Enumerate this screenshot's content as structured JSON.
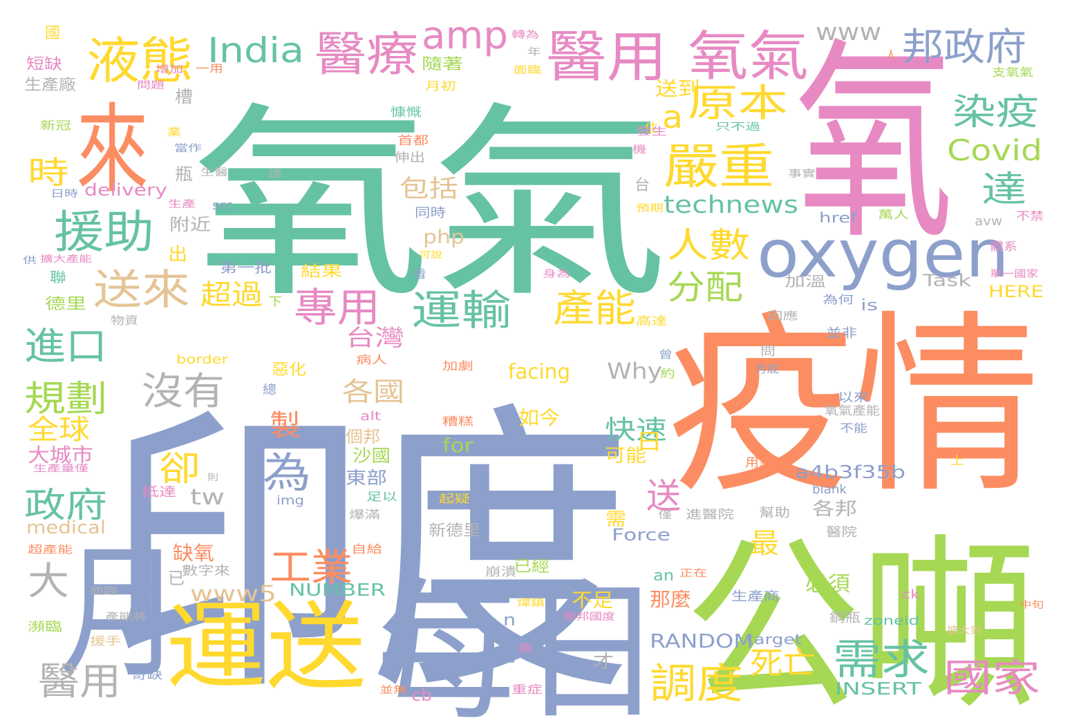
{
  "cloud": {
    "palette": {
      "green": "#66c2a5",
      "orange": "#fc8d62",
      "blue": "#8da0cb",
      "pink": "#e78ac3",
      "lime": "#a6d854",
      "yellow": "#ffd92f",
      "tan": "#e5c494",
      "gray": "#b3b3b3"
    },
    "words": [
      {
        "text": "氧氣",
        "color": "#66c2a5"
      },
      {
        "text": "印度",
        "color": "#8da0cb"
      },
      {
        "text": "氧",
        "color": "#e78ac3"
      },
      {
        "text": "疫情",
        "color": "#fc8d62"
      },
      {
        "text": "公噸",
        "color": "#a6d854"
      },
      {
        "text": "每日",
        "color": "#8da0cb"
      },
      {
        "text": "運送",
        "color": "#ffd92f"
      },
      {
        "text": "月",
        "color": "#8da0cb"
      },
      {
        "text": "來",
        "color": "#fc8d62"
      },
      {
        "text": "oxygen",
        "color": "#8da0cb"
      },
      {
        "text": "醫用",
        "color": "#e78ac3"
      },
      {
        "text": "氧氣",
        "color": "#e78ac3"
      },
      {
        "text": "液態",
        "color": "#ffd92f"
      },
      {
        "text": "醫療",
        "color": "#e78ac3"
      },
      {
        "text": "amp",
        "color": "#e78ac3"
      },
      {
        "text": "India",
        "color": "#66c2a5"
      },
      {
        "text": "邦政府",
        "color": "#8da0cb"
      },
      {
        "text": "www",
        "color": "#b3b3b3"
      },
      {
        "text": "援助",
        "color": "#66c2a5"
      },
      {
        "text": "送來",
        "color": "#e5c494"
      },
      {
        "text": "嚴重",
        "color": "#ffd92f"
      },
      {
        "text": "原本",
        "color": "#ffd92f"
      },
      {
        "text": "染疫",
        "color": "#66c2a5"
      },
      {
        "text": "Covid",
        "color": "#a6d854"
      },
      {
        "text": "達",
        "color": "#66c2a5"
      },
      {
        "text": "a",
        "color": "#ffd92f"
      },
      {
        "text": "人數",
        "color": "#ffd92f"
      },
      {
        "text": "分配",
        "color": "#a6d854"
      },
      {
        "text": "technews",
        "color": "#66c2a5"
      },
      {
        "text": "運輸",
        "color": "#66c2a5"
      },
      {
        "text": "產能",
        "color": "#ffd92f"
      },
      {
        "text": "專用",
        "color": "#e78ac3"
      },
      {
        "text": "時",
        "color": "#ffd92f"
      },
      {
        "text": "進口",
        "color": "#66c2a5"
      },
      {
        "text": "規劃",
        "color": "#a6d854"
      },
      {
        "text": "沒有",
        "color": "#b3b3b3"
      },
      {
        "text": "全球",
        "color": "#ffd92f"
      },
      {
        "text": "大城市",
        "color": "#e78ac3"
      },
      {
        "text": "政府",
        "color": "#66c2a5"
      },
      {
        "text": "卻",
        "color": "#ffd92f"
      },
      {
        "text": "為",
        "color": "#8da0cb"
      },
      {
        "text": "工業",
        "color": "#fc8d62"
      },
      {
        "text": "www5",
        "color": "#e5c494"
      },
      {
        "text": "大",
        "color": "#b3b3b3"
      },
      {
        "text": "醫用",
        "color": "#b3b3b3"
      },
      {
        "text": "調度",
        "color": "#ffd92f"
      },
      {
        "text": "需求",
        "color": "#66c2a5"
      },
      {
        "text": "國家",
        "color": "#e78ac3"
      },
      {
        "text": "死亡",
        "color": "#ffd92f"
      },
      {
        "text": "台灣",
        "color": "#e78ac3"
      },
      {
        "text": "各國",
        "color": "#e5c494"
      },
      {
        "text": "包括",
        "color": "#e5c494"
      },
      {
        "text": "快速",
        "color": "#66c2a5"
      },
      {
        "text": "送",
        "color": "#e78ac3"
      },
      {
        "text": "日",
        "color": "#ffd92f"
      },
      {
        "text": "a4b3f35b",
        "color": "#8da0cb"
      },
      {
        "text": "Why",
        "color": "#b3b3b3"
      },
      {
        "text": "facing",
        "color": "#ffd92f"
      },
      {
        "text": "超過",
        "color": "#ffd92f"
      },
      {
        "text": "製",
        "color": "#fc8d62"
      },
      {
        "text": "NUMBER",
        "color": "#66c2a5"
      },
      {
        "text": "RANDOM",
        "color": "#8da0cb"
      },
      {
        "text": "INSERT",
        "color": "#66c2a5"
      },
      {
        "text": "Force",
        "color": "#8da0cb"
      },
      {
        "text": "medical",
        "color": "#e5c494"
      },
      {
        "text": "delivery",
        "color": "#e78ac3"
      },
      {
        "text": "Task",
        "color": "#b3b3b3"
      },
      {
        "text": "HERE",
        "color": "#ffd92f"
      },
      {
        "text": "php",
        "color": "#e5c494"
      },
      {
        "text": "tw",
        "color": "#b3b3b3"
      },
      {
        "text": "for",
        "color": "#a6d854"
      },
      {
        "text": "cb",
        "color": "#e78ac3"
      },
      {
        "text": "最",
        "color": "#ffd92f"
      },
      {
        "text": "必須",
        "color": "#a6d854"
      },
      {
        "text": "那麼",
        "color": "#fc8d62"
      },
      {
        "text": "不足",
        "color": "#ffd92f"
      },
      {
        "text": "缺氧",
        "color": "#fc8d62"
      },
      {
        "text": "如今",
        "color": "#ffd92f"
      },
      {
        "text": "個邦",
        "color": "#e5c494"
      },
      {
        "text": "沙國",
        "color": "#a6d854"
      },
      {
        "text": "東部",
        "color": "#8da0cb"
      },
      {
        "text": "可能",
        "color": "#ffd92f"
      },
      {
        "text": "各邦",
        "color": "#b3b3b3"
      },
      {
        "text": "新德里",
        "color": "#b3b3b3"
      },
      {
        "text": "附近",
        "color": "#b3b3b3"
      },
      {
        "text": "台",
        "color": "#b3b3b3"
      },
      {
        "text": "生產廠",
        "color": "#b3b3b3"
      },
      {
        "text": "短缺",
        "color": "#e78ac3"
      },
      {
        "text": "國",
        "color": "#ffd92f"
      },
      {
        "text": "送到",
        "color": "#ffd92f"
      },
      {
        "text": "隨著",
        "color": "#a6d854"
      },
      {
        "text": "月初",
        "color": "#ffd92f"
      },
      {
        "text": "結果",
        "color": "#ffd92f"
      },
      {
        "text": "第一批",
        "color": "#8da0cb"
      },
      {
        "text": "加溫",
        "color": "#b3b3b3"
      },
      {
        "text": "德里",
        "color": "#a6d854"
      },
      {
        "text": "聯",
        "color": "#66c2a5"
      },
      {
        "text": "出",
        "color": "#ffd92f"
      },
      {
        "text": "瓶",
        "color": "#b3b3b3"
      },
      {
        "text": "槽",
        "color": "#b3b3b3"
      },
      {
        "text": "下",
        "color": "#a6d854"
      },
      {
        "text": "惡化",
        "color": "#ffd92f"
      },
      {
        "text": "總",
        "color": "#8da0cb"
      },
      {
        "text": "已",
        "color": "#b3b3b3"
      },
      {
        "text": "已經",
        "color": "#a6d854"
      },
      {
        "text": "n",
        "color": "#8da0cb"
      },
      {
        "text": "an",
        "color": "#66c2a5"
      },
      {
        "text": "is",
        "color": "#8da0cb"
      },
      {
        "text": "才",
        "color": "#b3b3b3"
      },
      {
        "text": "需",
        "color": "#ffd92f"
      },
      {
        "text": "並非",
        "color": "#8da0cb"
      },
      {
        "text": "以來",
        "color": "#8da0cb"
      },
      {
        "text": "href",
        "color": "#8da0cb"
      },
      {
        "text": "blank",
        "color": "#8da0cb"
      },
      {
        "text": "zoneid",
        "color": "#66c2a5"
      },
      {
        "text": "target",
        "color": "#8da0cb"
      },
      {
        "text": "border",
        "color": "#ffd92f"
      },
      {
        "text": "src",
        "color": "#8da0cb"
      },
      {
        "text": "alt",
        "color": "#e78ac3"
      },
      {
        "text": "img",
        "color": "#8da0cb"
      },
      {
        "text": "ck",
        "color": "#e78ac3"
      },
      {
        "text": "avw",
        "color": "#b3b3b3"
      },
      {
        "text": "醫院",
        "color": "#b3b3b3"
      },
      {
        "text": "幫助",
        "color": "#b3b3b3"
      },
      {
        "text": "鋼瓶",
        "color": "#b3b3b3"
      },
      {
        "text": "生產商",
        "color": "#8da0cb"
      },
      {
        "text": "崩潰",
        "color": "#b3b3b3"
      },
      {
        "text": "數字來",
        "color": "#b3b3b3"
      },
      {
        "text": "病人",
        "color": "#fc8d62"
      },
      {
        "text": "加劇",
        "color": "#fc8d62"
      },
      {
        "text": "糟糕",
        "color": "#fc8d62"
      },
      {
        "text": "起疑",
        "color": "#ffd92f"
      },
      {
        "text": "爆滿",
        "color": "#b3b3b3"
      },
      {
        "text": "足以",
        "color": "#66c2a5"
      },
      {
        "text": "自給",
        "color": "#fc8d62"
      },
      {
        "text": "進醫院",
        "color": "#b3b3b3"
      },
      {
        "text": "用氧氣",
        "color": "#fc8d62"
      },
      {
        "text": "氧氣產能",
        "color": "#b3b3b3"
      },
      {
        "text": "不能",
        "color": "#8da0cb"
      },
      {
        "text": "上",
        "color": "#ffd92f"
      },
      {
        "text": "問",
        "color": "#b3b3b3"
      },
      {
        "text": "月底",
        "color": "#8da0cb"
      },
      {
        "text": "曾",
        "color": "#8da0cb"
      },
      {
        "text": "約",
        "color": "#a6d854"
      },
      {
        "text": "為何",
        "color": "#8da0cb"
      },
      {
        "text": "高達",
        "color": "#ffd92f"
      },
      {
        "text": "因應",
        "color": "#b3b3b3"
      },
      {
        "text": "物資",
        "color": "#b3b3b3"
      },
      {
        "text": "身為",
        "color": "#e78ac3"
      },
      {
        "text": "看",
        "color": "#8da0cb"
      },
      {
        "text": "可說",
        "color": "#ffd92f"
      },
      {
        "text": "同時",
        "color": "#8da0cb"
      },
      {
        "text": "伸出",
        "color": "#b3b3b3"
      },
      {
        "text": "首都",
        "color": "#fc8d62"
      },
      {
        "text": "慷慨",
        "color": "#66c2a5"
      },
      {
        "text": "住",
        "color": "#ffd92f"
      },
      {
        "text": "發生",
        "color": "#e78ac3"
      },
      {
        "text": "機",
        "color": "#e78ac3"
      },
      {
        "text": "只不過",
        "color": "#66c2a5"
      },
      {
        "text": "事實",
        "color": "#b3b3b3"
      },
      {
        "text": "預期",
        "color": "#ffd92f"
      },
      {
        "text": "萬人",
        "color": "#a6d854"
      },
      {
        "text": "不禁",
        "color": "#e78ac3"
      },
      {
        "text": "體系",
        "color": "#e78ac3"
      },
      {
        "text": "單一國家",
        "color": "#e78ac3"
      },
      {
        "text": "支氧氣",
        "color": "#a6d854"
      },
      {
        "text": "人",
        "color": "#fc8d62"
      },
      {
        "text": "轉為",
        "color": "#e78ac3"
      },
      {
        "text": "年",
        "color": "#b3b3b3"
      },
      {
        "text": "面臨",
        "color": "#ffd92f"
      },
      {
        "text": "增加",
        "color": "#e78ac3"
      },
      {
        "text": "一用",
        "color": "#fc8d62"
      },
      {
        "text": "問題",
        "color": "#e78ac3"
      },
      {
        "text": "新冠",
        "color": "#a6d854"
      },
      {
        "text": "業",
        "color": "#ffd92f"
      },
      {
        "text": "當作",
        "color": "#8da0cb"
      },
      {
        "text": "生醫",
        "color": "#b3b3b3"
      },
      {
        "text": "造",
        "color": "#b3b3b3"
      },
      {
        "text": "日時",
        "color": "#8da0cb"
      },
      {
        "text": "生產",
        "color": "#e78ac3"
      },
      {
        "text": "供",
        "color": "#8da0cb"
      },
      {
        "text": "擴大產能",
        "color": "#e78ac3"
      },
      {
        "text": "生產量僅",
        "color": "#e78ac3"
      },
      {
        "text": "則",
        "color": "#b3b3b3"
      },
      {
        "text": "抵達",
        "color": "#e78ac3"
      },
      {
        "text": "超產能",
        "color": "#fc8d62"
      },
      {
        "text": "僅",
        "color": "#b3b3b3"
      },
      {
        "text": "面臨",
        "color": "#b3b3b3"
      },
      {
        "text": "瀕臨",
        "color": "#a6d854"
      },
      {
        "text": "產能將",
        "color": "#b3b3b3"
      },
      {
        "text": "援手",
        "color": "#e5c494"
      },
      {
        "text": "奇缺",
        "color": "#8da0cb"
      },
      {
        "text": "並無",
        "color": "#fc8d62"
      },
      {
        "text": "重症",
        "color": "#e78ac3"
      },
      {
        "text": "興",
        "color": "#e78ac3"
      },
      {
        "text": "燦鎮",
        "color": "#ffd92f"
      },
      {
        "text": "聯邦國度",
        "color": "#e78ac3"
      },
      {
        "text": "擴大到",
        "color": "#e5c494"
      },
      {
        "text": "中旬",
        "color": "#fc8d62"
      },
      {
        "text": "正在",
        "color": "#fc8d62"
      }
    ]
  }
}
